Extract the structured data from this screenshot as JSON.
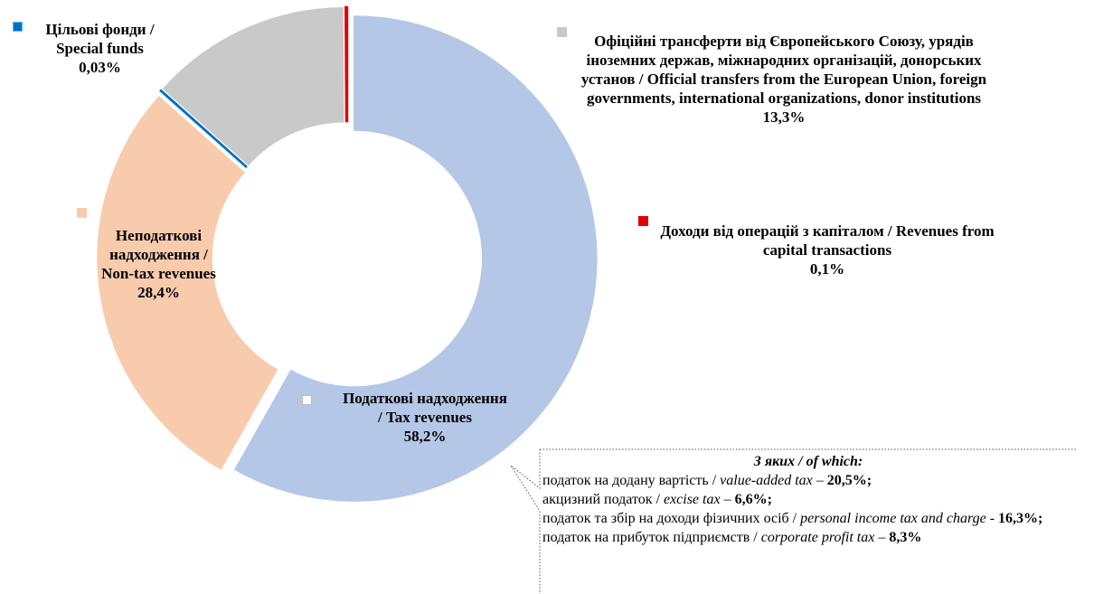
{
  "chart_data": {
    "type": "donut",
    "categories": [
      "Податкові надходження / Tax revenues",
      "Неподаткові надходження / Non-tax revenues",
      "Цільові фонди / Special funds",
      "Офіційні трансферти від Європейського Союзу, урядів іноземних держав, міжнародних організацій, донорських установ / Official transfers from the European Union, foreign governments, international organizations, donor institutions",
      "Доходи від операцій з капіталом / Revenues from capital transactions"
    ],
    "values": [
      58.2,
      28.4,
      0.03,
      13.3,
      0.1
    ],
    "value_labels": [
      "58,2%",
      "28,4%",
      "0,03%",
      "13,3%",
      "0,1%"
    ],
    "colors": [
      "#b4c7e7",
      "#f8cbad",
      "#0070c0",
      "#c9c9c9",
      "#e00000"
    ],
    "annotation": {
      "title": "З яких / of which:",
      "items": [
        {
          "ua": "податок на додану вартість /",
          "en": "value-added tax",
          "sep": "–",
          "value": "20,5%;"
        },
        {
          "ua": "акцизний податок /",
          "en": "excise tax",
          "sep": "–",
          "value": "6,6%;"
        },
        {
          "ua": "податок та збір на доходи фізичних осіб /",
          "en": "personal income tax and charge",
          "sep": "-",
          "value": "16,3%;"
        },
        {
          "ua": "податок на прибуток підприємств /",
          "en": "corporate profit tax",
          "sep": "–",
          "value": "8,3%"
        }
      ]
    }
  }
}
